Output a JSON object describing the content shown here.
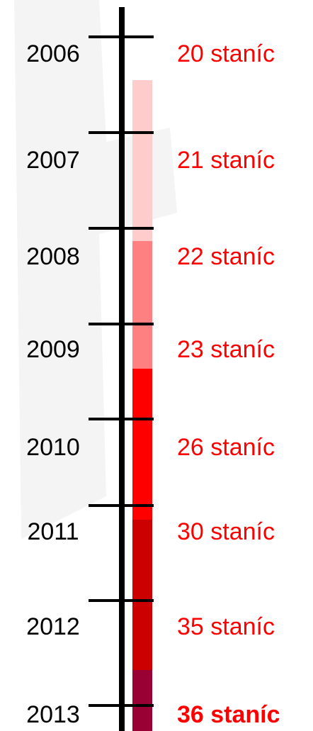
{
  "timeline": {
    "entries": [
      {
        "year": "2006",
        "label": "20 staníc"
      },
      {
        "year": "2007",
        "label": "21 staníc"
      },
      {
        "year": "2008",
        "label": "22 staníc"
      },
      {
        "year": "2009",
        "label": "23 staníc"
      },
      {
        "year": "2010",
        "label": "26 staníc"
      },
      {
        "year": "2011",
        "label": "30 staníc"
      },
      {
        "year": "2012",
        "label": "35 staníc"
      },
      {
        "year": "2013",
        "label": "36 staníc"
      }
    ]
  }
}
